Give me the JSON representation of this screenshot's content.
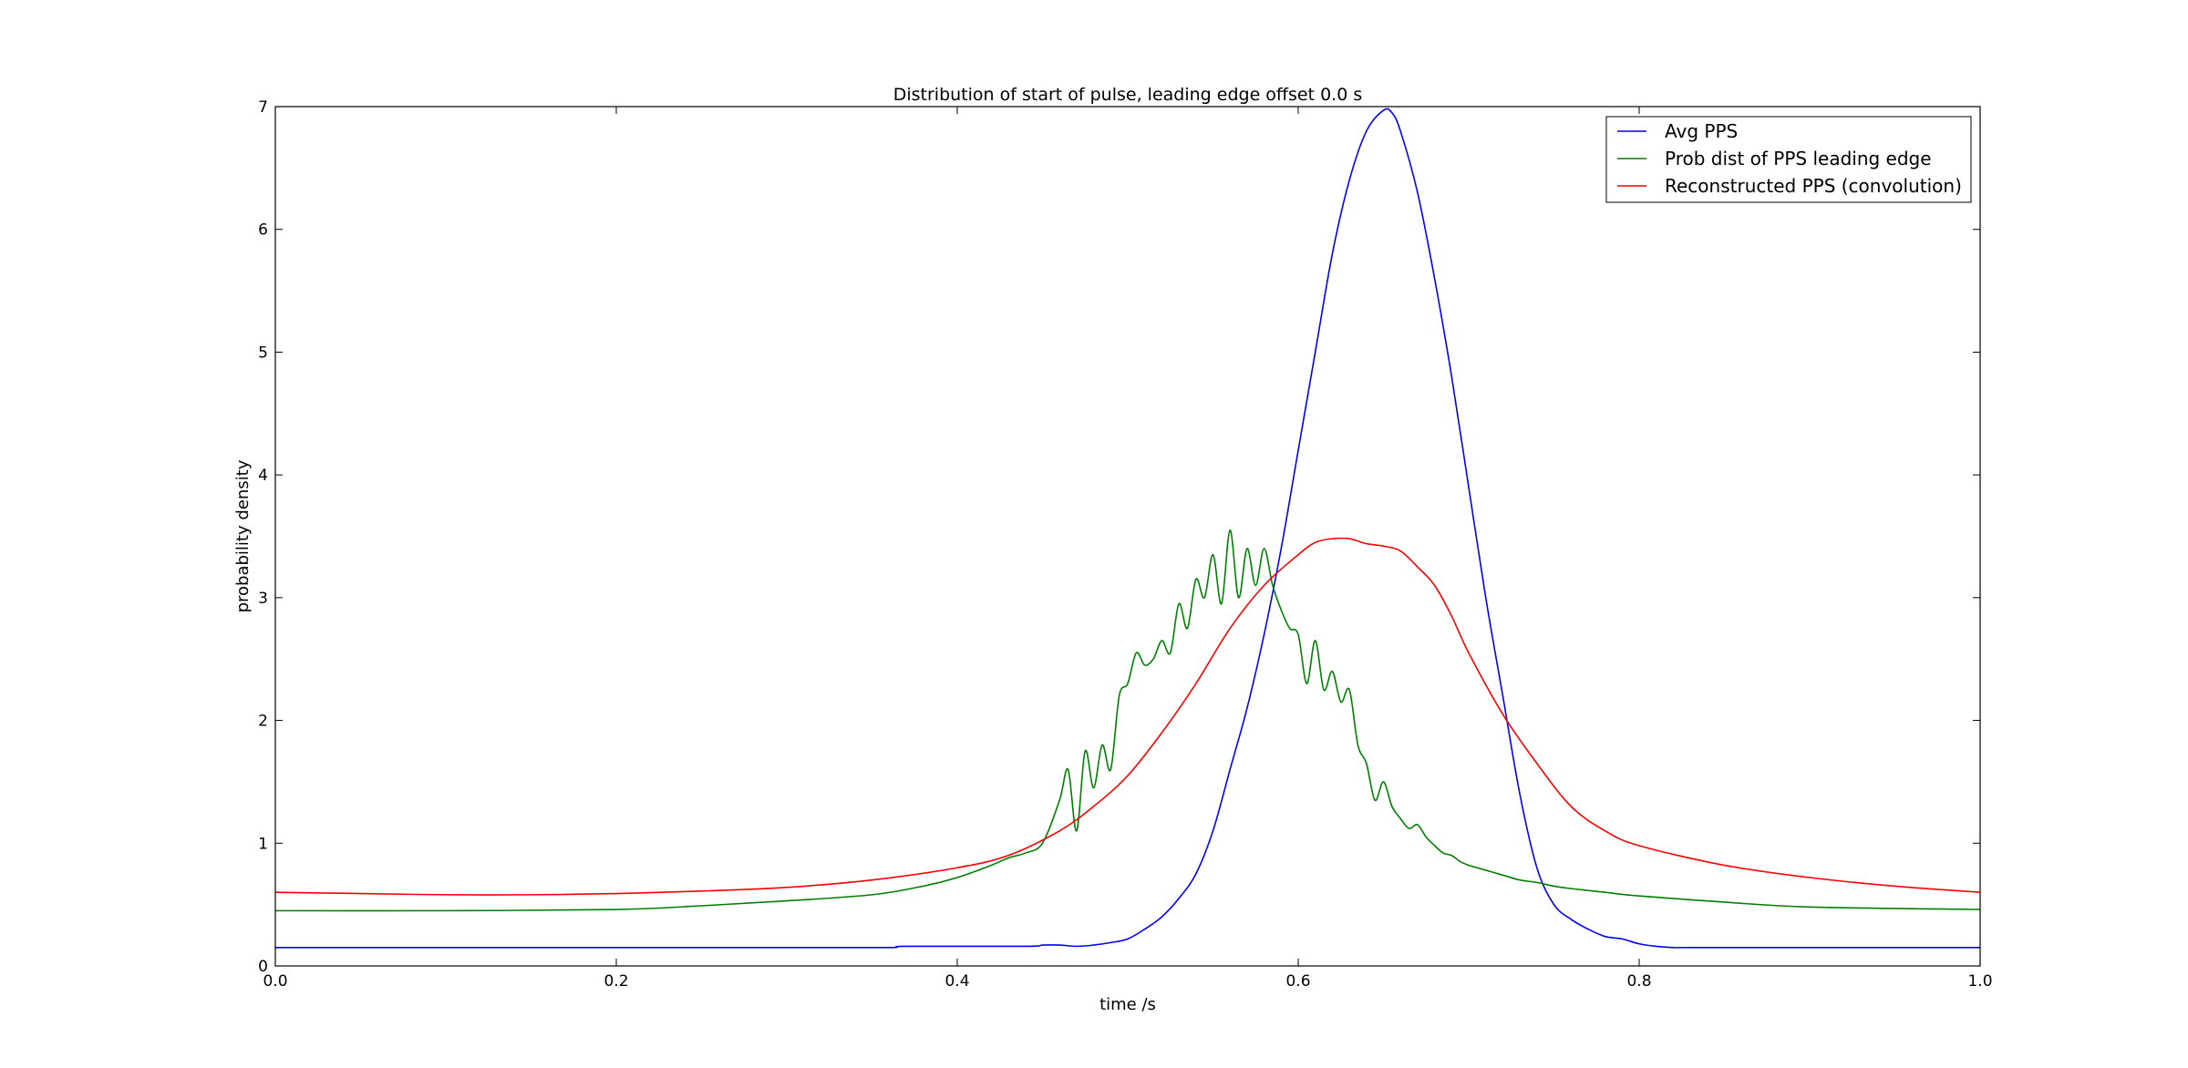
{
  "chart_data": {
    "type": "line",
    "title": "Distribution of start of pulse, leading edge offset 0.0 s",
    "xlabel": "time /s",
    "ylabel": "probability density",
    "xlim": [
      0.0,
      1.0
    ],
    "ylim": [
      0,
      7
    ],
    "xticks": [
      "0.0",
      "0.2",
      "0.4",
      "0.6",
      "0.8",
      "1.0"
    ],
    "yticks": [
      "0",
      "1",
      "2",
      "3",
      "4",
      "5",
      "6",
      "7"
    ],
    "grid": false,
    "legend_position": "top-right",
    "series": [
      {
        "name": "Avg PPS",
        "color": "#0000ff",
        "x": [
          0.0,
          0.1,
          0.2,
          0.3,
          0.36,
          0.37,
          0.44,
          0.45,
          0.46,
          0.47,
          0.48,
          0.49,
          0.5,
          0.51,
          0.52,
          0.53,
          0.54,
          0.55,
          0.56,
          0.57,
          0.58,
          0.59,
          0.6,
          0.61,
          0.62,
          0.63,
          0.64,
          0.65,
          0.655,
          0.66,
          0.67,
          0.68,
          0.69,
          0.7,
          0.71,
          0.72,
          0.73,
          0.74,
          0.75,
          0.76,
          0.77,
          0.78,
          0.79,
          0.8,
          0.81,
          0.82,
          0.83,
          0.9,
          1.0
        ],
        "y": [
          0.15,
          0.15,
          0.15,
          0.15,
          0.15,
          0.16,
          0.16,
          0.17,
          0.17,
          0.16,
          0.17,
          0.19,
          0.22,
          0.3,
          0.4,
          0.55,
          0.75,
          1.1,
          1.6,
          2.1,
          2.7,
          3.4,
          4.2,
          5.0,
          5.8,
          6.4,
          6.8,
          6.97,
          6.95,
          6.8,
          6.3,
          5.6,
          4.8,
          3.9,
          3.0,
          2.2,
          1.4,
          0.8,
          0.5,
          0.38,
          0.3,
          0.24,
          0.22,
          0.18,
          0.16,
          0.15,
          0.15,
          0.15,
          0.15
        ]
      },
      {
        "name": "Prob dist of PPS leading edge",
        "color": "#008000",
        "x": [
          0.0,
          0.1,
          0.2,
          0.25,
          0.3,
          0.35,
          0.38,
          0.4,
          0.42,
          0.43,
          0.44,
          0.45,
          0.46,
          0.465,
          0.47,
          0.475,
          0.48,
          0.485,
          0.49,
          0.495,
          0.5,
          0.505,
          0.51,
          0.515,
          0.52,
          0.525,
          0.53,
          0.535,
          0.54,
          0.545,
          0.55,
          0.555,
          0.56,
          0.565,
          0.57,
          0.575,
          0.58,
          0.585,
          0.59,
          0.595,
          0.6,
          0.605,
          0.61,
          0.615,
          0.62,
          0.625,
          0.63,
          0.635,
          0.64,
          0.645,
          0.65,
          0.655,
          0.66,
          0.665,
          0.67,
          0.675,
          0.68,
          0.685,
          0.69,
          0.695,
          0.7,
          0.71,
          0.72,
          0.73,
          0.74,
          0.75,
          0.76,
          0.78,
          0.8,
          0.85,
          0.9,
          1.0
        ],
        "y": [
          0.45,
          0.45,
          0.46,
          0.49,
          0.53,
          0.58,
          0.65,
          0.72,
          0.82,
          0.88,
          0.92,
          1.0,
          1.35,
          1.6,
          1.1,
          1.75,
          1.45,
          1.8,
          1.6,
          2.2,
          2.3,
          2.55,
          2.45,
          2.5,
          2.65,
          2.55,
          2.95,
          2.75,
          3.15,
          3.0,
          3.35,
          2.95,
          3.55,
          3.0,
          3.4,
          3.1,
          3.4,
          3.1,
          2.9,
          2.75,
          2.7,
          2.3,
          2.65,
          2.25,
          2.4,
          2.15,
          2.25,
          1.8,
          1.65,
          1.35,
          1.5,
          1.3,
          1.2,
          1.12,
          1.15,
          1.05,
          0.98,
          0.92,
          0.9,
          0.85,
          0.82,
          0.78,
          0.74,
          0.7,
          0.68,
          0.65,
          0.63,
          0.6,
          0.57,
          0.52,
          0.48,
          0.46
        ]
      },
      {
        "name": "Reconstructed PPS (convolution)",
        "color": "#ff0000",
        "x": [
          0.0,
          0.05,
          0.1,
          0.15,
          0.2,
          0.25,
          0.3,
          0.35,
          0.4,
          0.43,
          0.46,
          0.48,
          0.5,
          0.52,
          0.54,
          0.56,
          0.58,
          0.6,
          0.61,
          0.62,
          0.63,
          0.64,
          0.65,
          0.66,
          0.67,
          0.68,
          0.69,
          0.7,
          0.72,
          0.74,
          0.76,
          0.78,
          0.8,
          0.85,
          0.9,
          0.95,
          1.0
        ],
        "y": [
          0.6,
          0.59,
          0.58,
          0.58,
          0.59,
          0.61,
          0.64,
          0.7,
          0.8,
          0.9,
          1.1,
          1.3,
          1.55,
          1.9,
          2.3,
          2.75,
          3.1,
          3.35,
          3.45,
          3.48,
          3.48,
          3.44,
          3.42,
          3.38,
          3.25,
          3.1,
          2.85,
          2.55,
          2.05,
          1.65,
          1.3,
          1.1,
          0.98,
          0.82,
          0.72,
          0.65,
          0.6
        ]
      }
    ]
  }
}
